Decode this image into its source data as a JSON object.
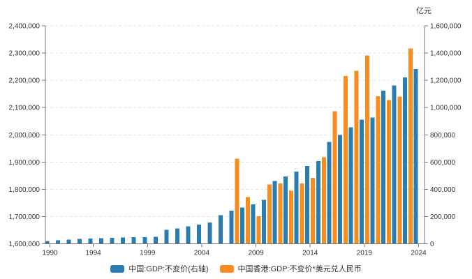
{
  "unit_label": "亿元",
  "colors": {
    "china_blue": "#2b7cb0",
    "hk_orange": "#f78d1e",
    "grid": "#e3e3e3",
    "axis": "#777777",
    "text": "#333333"
  },
  "legend": {
    "items": [
      {
        "label": "中国:GDP:不变价(右轴)",
        "color_key": "china_blue"
      },
      {
        "label": "中国香港:GDP:不变价*美元兑人民币",
        "color_key": "hk_orange"
      }
    ]
  },
  "chart_data": {
    "type": "bar",
    "title": "",
    "unit": "亿元",
    "x": [
      1990,
      1991,
      1992,
      1993,
      1994,
      1995,
      1996,
      1997,
      1998,
      1999,
      2000,
      2001,
      2002,
      2003,
      2004,
      2005,
      2006,
      2007,
      2008,
      2009,
      2010,
      2011,
      2012,
      2013,
      2014,
      2015,
      2016,
      2017,
      2018,
      2019,
      2020,
      2021,
      2022,
      2023,
      2024
    ],
    "x_tick_labels": [
      "1990",
      "1994",
      "1999",
      "2004",
      "2009",
      "2014",
      "2019",
      "2024"
    ],
    "left_axis": {
      "min": 1600000,
      "max": 2400000,
      "step": 100000,
      "tick_labels": [
        "1,600,000",
        "1,700,000",
        "1,800,000",
        "1,900,000",
        "2,000,000",
        "2,100,000",
        "2,200,000",
        "2,300,000",
        "2,400,000"
      ]
    },
    "right_axis": {
      "min": 0,
      "max": 1600000,
      "step": 200000,
      "tick_labels": [
        "0",
        "200,000",
        "400,000",
        "600,000",
        "800,000",
        "1,000,000",
        "1,200,000",
        "1,400,000",
        "1,600,000"
      ]
    },
    "grid": "dashed-horizontal",
    "legend_position": "bottom-center",
    "series": [
      {
        "name": "中国:GDP:不变价(右轴)",
        "axis": "right",
        "color_key": "china_blue",
        "values": [
          19500,
          26500,
          31500,
          35000,
          38500,
          40500,
          43500,
          46000,
          47500,
          49500,
          52000,
          103000,
          113000,
          128000,
          141000,
          155000,
          210000,
          243000,
          267000,
          290000,
          322000,
          461000,
          494000,
          531000,
          570000,
          608000,
          747000,
          798000,
          856000,
          911000,
          928000,
          1124000,
          1161000,
          1220000,
          1283000
        ]
      },
      {
        "name": "中国香港:GDP:不变价*美元兑人民币",
        "axis": "left",
        "color_key": "hk_orange",
        "values": [
          null,
          null,
          null,
          null,
          null,
          null,
          null,
          null,
          null,
          null,
          null,
          null,
          null,
          null,
          null,
          null,
          null,
          1912000,
          1771000,
          1701000,
          1818000,
          1821000,
          1795000,
          1822000,
          1842000,
          1917000,
          2086000,
          2216000,
          2235000,
          2291000,
          2142000,
          2127000,
          2140000,
          2317000,
          null
        ]
      }
    ]
  }
}
